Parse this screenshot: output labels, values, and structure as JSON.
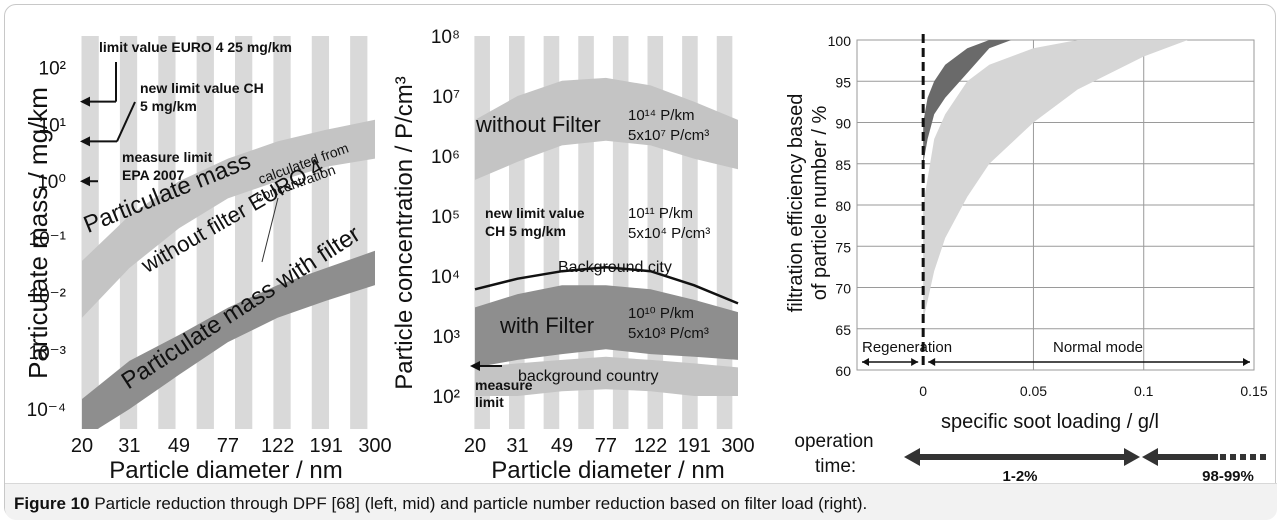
{
  "caption": {
    "figure_label": "Figure 10",
    "text": "Particle reduction through DPF [68] (left, mid) and particle number reduction based on filter load (right)."
  },
  "colors": {
    "stripe": "#d9d9d9",
    "band_light": "#c4c4c4",
    "band_dark": "#8e8e8e",
    "band_darkest": "#6a6a6a",
    "curve": "#111111"
  },
  "chart_data": [
    {
      "type": "area",
      "ylabel": "Particulate mass / mg/km",
      "xlabel": "Particle diameter / nm",
      "x_ticks": [
        "20",
        "31",
        "49",
        "77",
        "122",
        "191",
        "300"
      ],
      "y_ticks": [
        "10²",
        "10¹",
        "10⁰",
        "10⁻¹",
        "10⁻²",
        "10⁻³",
        "10⁻⁴"
      ],
      "ylim": [
        "10⁻⁴",
        "10²"
      ],
      "log_y": true,
      "log_x": true,
      "series": [
        {
          "name": "Particulate mass without filter EURO 4",
          "x": [
            20,
            31,
            49,
            77,
            122,
            191,
            300
          ],
          "lower": [
            0.004,
            0.03,
            0.15,
            0.5,
            1.0,
            1.8,
            2.5
          ],
          "upper": [
            0.04,
            0.25,
            1.0,
            2.5,
            5.0,
            8.0,
            12.0
          ]
        },
        {
          "name": "Particulate mass with filter",
          "x": [
            20,
            31,
            49,
            77,
            122,
            191,
            300
          ],
          "lower": [
            3e-05,
            0.0001,
            0.0004,
            0.0015,
            0.004,
            0.008,
            0.015
          ],
          "upper": [
            0.00015,
            0.0007,
            0.002,
            0.006,
            0.015,
            0.03,
            0.06
          ]
        }
      ],
      "annotations": [
        {
          "text": "limit value EURO 4 25 mg/km",
          "value": 25
        },
        {
          "text": "new limit value CH",
          "text2": "5 mg/km",
          "value": 5
        },
        {
          "text": "measure limit",
          "text2": "EPA 2007",
          "value": 1
        },
        {
          "text": "calculated from",
          "text2": "concentration"
        }
      ],
      "band_labels": [
        "Particulate mass",
        "without filter EURO 4",
        "Particulate mass with filter"
      ]
    },
    {
      "type": "area",
      "ylabel": "Particle concentration / P/cm³",
      "xlabel": "Particle diameter / nm",
      "x_ticks": [
        "20",
        "31",
        "49",
        "77",
        "122",
        "191",
        "300"
      ],
      "y_ticks": [
        "10⁸",
        "10⁷",
        "10⁶",
        "10⁵",
        "10⁴",
        "10³",
        "10²"
      ],
      "log_y": true,
      "log_x": true,
      "series": [
        {
          "name": "without Filter",
          "x": [
            20,
            31,
            49,
            77,
            122,
            191,
            300
          ],
          "lower": [
            400000,
            800000,
            1500000,
            1800000,
            1500000,
            900000,
            600000
          ],
          "upper": [
            4000000,
            10000000,
            18000000,
            20000000,
            15000000,
            8000000,
            4000000
          ]
        },
        {
          "name": "Background city",
          "x": [
            20,
            31,
            49,
            77,
            122,
            191,
            300
          ],
          "values": [
            6000,
            9000,
            12000,
            14000,
            12000,
            7000,
            3500
          ]
        },
        {
          "name": "with Filter",
          "x": [
            20,
            31,
            49,
            77,
            122,
            191,
            300
          ],
          "lower": [
            300,
            400,
            500,
            600,
            500,
            450,
            400
          ],
          "upper": [
            3000,
            5000,
            7000,
            7000,
            6000,
            4000,
            2500
          ]
        },
        {
          "name": "background country",
          "x": [
            20,
            31,
            49,
            77,
            122,
            191,
            300
          ],
          "lower": [
            100,
            100,
            120,
            130,
            120,
            100,
            100
          ],
          "upper": [
            300,
            350,
            400,
            450,
            400,
            350,
            300
          ]
        }
      ],
      "labels": {
        "without_filter": "without Filter",
        "wo_km": "10¹⁴ P/km",
        "wo_cm": "5x10⁷ P/cm³",
        "new_limit_1": "new limit value",
        "new_limit_2": "CH 5 mg/km",
        "nl_km": "10¹¹ P/km",
        "nl_cm": "5x10⁴ P/cm³",
        "city": "Background city",
        "with_filter": "with Filter",
        "wf_km": "10¹⁰ P/km",
        "wf_cm": "5x10³ P/cm³",
        "country": "background country",
        "measure_1": "measure",
        "measure_2": "limit"
      }
    },
    {
      "type": "area",
      "ylabel": "filtration efficiency based of particle number / %",
      "ylabel_lines": [
        "filtration efficiency based",
        "of particle number / %"
      ],
      "xlabel": "specific soot loading / g/l",
      "x_ticks": [
        "0",
        "0.05",
        "0.1",
        "0.15"
      ],
      "y_ticks": [
        "100",
        "95",
        "90",
        "85",
        "80",
        "75",
        "70",
        "65",
        "60"
      ],
      "xlim": [
        -0.03,
        0.15
      ],
      "ylim": [
        60,
        100
      ],
      "grid": true,
      "series": [
        {
          "name": "dark band",
          "x": [
            0,
            0.002,
            0.005,
            0.01,
            0.02,
            0.03,
            0.04
          ],
          "lower": [
            85,
            88,
            91,
            93,
            96,
            99,
            100
          ],
          "upper": [
            90,
            93,
            95,
            97,
            99,
            100,
            100
          ]
        },
        {
          "name": "light band",
          "x": [
            0,
            0.005,
            0.01,
            0.02,
            0.03,
            0.05,
            0.07,
            0.1,
            0.12
          ],
          "lower": [
            66,
            72,
            76,
            81,
            85,
            90,
            94,
            98,
            100
          ],
          "upper": [
            80,
            88,
            91,
            95,
            97,
            99,
            100,
            100,
            100
          ]
        }
      ],
      "annotations": {
        "regeneration": "Regeneration",
        "normal": "Normal mode",
        "op_time_1": "operation",
        "op_time_2": "time:",
        "pct1": "1-2%",
        "pct2": "98-99%"
      }
    }
  ]
}
